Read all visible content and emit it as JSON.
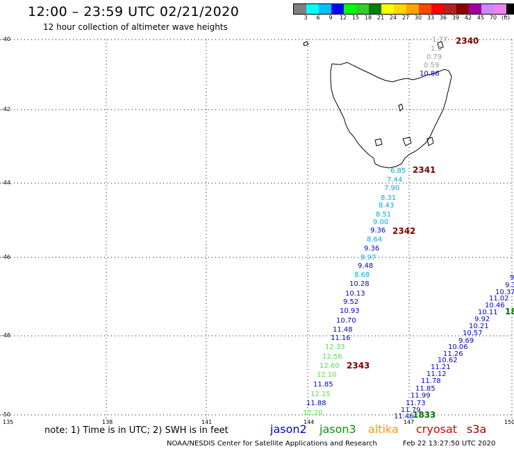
{
  "header": {
    "title": "12:00 – 23:59 UTC 02/21/2020",
    "subtitle": "12 hour collection of altimeter wave heights"
  },
  "colorbar": {
    "colors": [
      "#808080",
      "#00ffff",
      "#00bfff",
      "#0000ff",
      "#00ff00",
      "#32cd32",
      "#008000",
      "#ffff00",
      "#ffd700",
      "#ffa500",
      "#ff4500",
      "#ff0000",
      "#b22222",
      "#8b0000",
      "#a000a0",
      "#cc88ff",
      "#ee82ee",
      "#000000"
    ],
    "labels": [
      "3",
      "6",
      "9",
      "12",
      "15",
      "18",
      "21",
      "24",
      "27",
      "30",
      "33",
      "36",
      "39",
      "42",
      "45",
      "70",
      "(ft)"
    ]
  },
  "axes": {
    "lat_labels": [
      "-40",
      "-42",
      "-44",
      "-46",
      "-48",
      "-50"
    ],
    "lon_labels": [
      "135",
      "138",
      "141",
      "144",
      "147",
      "150"
    ]
  },
  "passes": [
    {
      "label": "2340",
      "color": "#7a0000"
    },
    {
      "label": "2341",
      "color": "#7a0000"
    },
    {
      "label": "2342",
      "color": "#7a0000"
    },
    {
      "label": "2343",
      "color": "#7a0000"
    },
    {
      "label": "1833",
      "color": "#007000"
    },
    {
      "label": "18",
      "color": "#007000"
    }
  ],
  "track_a": [
    {
      "v": "1.77",
      "c": "#999999"
    },
    {
      "v": "1.3",
      "c": "#999999"
    },
    {
      "v": "0.79",
      "c": "#999999"
    },
    {
      "v": "0.59",
      "c": "#999999"
    },
    {
      "v": "10.86",
      "c": "#0000cc"
    },
    {
      "v": "6.85",
      "c": "#00aadd"
    },
    {
      "v": "7.44",
      "c": "#00aadd"
    },
    {
      "v": "7.90",
      "c": "#00aadd"
    },
    {
      "v": "8.31",
      "c": "#00aadd"
    },
    {
      "v": "8.43",
      "c": "#00aadd"
    },
    {
      "v": "8.51",
      "c": "#00aadd"
    },
    {
      "v": "9.00",
      "c": "#00aadd"
    },
    {
      "v": "9.36",
      "c": "#0000cc"
    },
    {
      "v": "8.64",
      "c": "#00aadd"
    },
    {
      "v": "9.36",
      "c": "#0000cc"
    },
    {
      "v": "8.97",
      "c": "#00aadd"
    },
    {
      "v": "9.48",
      "c": "#0000cc"
    },
    {
      "v": "8.68",
      "c": "#00aadd"
    },
    {
      "v": "10.28",
      "c": "#0000cc"
    },
    {
      "v": "10.13",
      "c": "#0000cc"
    },
    {
      "v": "9.52",
      "c": "#0000cc"
    },
    {
      "v": "10.93",
      "c": "#0000cc"
    },
    {
      "v": "10.70",
      "c": "#0000cc"
    },
    {
      "v": "11.48",
      "c": "#0000cc"
    },
    {
      "v": "11.16",
      "c": "#0000cc"
    },
    {
      "v": "12.33",
      "c": "#55dd55"
    },
    {
      "v": "12.56",
      "c": "#55dd55"
    },
    {
      "v": "12.60",
      "c": "#55dd55"
    },
    {
      "v": "12.10",
      "c": "#55dd55"
    },
    {
      "v": "11.85",
      "c": "#0000cc"
    },
    {
      "v": "12.15",
      "c": "#55dd55"
    },
    {
      "v": "11.88",
      "c": "#0000cc"
    },
    {
      "v": "12.20",
      "c": "#55dd55"
    }
  ],
  "track_b": [
    {
      "v": "9",
      "c": "#0000cc"
    },
    {
      "v": "9.3",
      "c": "#0000cc"
    },
    {
      "v": "10.37",
      "c": "#0000cc"
    },
    {
      "v": "11.02",
      "c": "#0000cc"
    },
    {
      "v": "10.46",
      "c": "#0000cc"
    },
    {
      "v": "10.11",
      "c": "#0000cc"
    },
    {
      "v": "9.92",
      "c": "#0000cc"
    },
    {
      "v": "10.21",
      "c": "#0000cc"
    },
    {
      "v": "10.57",
      "c": "#0000cc"
    },
    {
      "v": "9.69",
      "c": "#0000cc"
    },
    {
      "v": "10.06",
      "c": "#0000cc"
    },
    {
      "v": "11.26",
      "c": "#0000cc"
    },
    {
      "v": "10.62",
      "c": "#0000cc"
    },
    {
      "v": "11.21",
      "c": "#0000cc"
    },
    {
      "v": "11.12",
      "c": "#0000cc"
    },
    {
      "v": "11.78",
      "c": "#0000cc"
    },
    {
      "v": "11.85",
      "c": "#0000cc"
    },
    {
      "v": "11.99",
      "c": "#0000cc"
    },
    {
      "v": "11.73",
      "c": "#0000cc"
    },
    {
      "v": "11.79",
      "c": "#0000cc"
    },
    {
      "v": "11.46",
      "c": "#0000cc"
    }
  ],
  "footer": {
    "note": "note: 1) Time is in UTC; 2) SWH is in feet",
    "satellites": [
      {
        "name": "jason2",
        "color": "#0000cc"
      },
      {
        "name": "jason3",
        "color": "#009900"
      },
      {
        "name": "altika",
        "color": "#ff9900"
      },
      {
        "name": "cryosat",
        "color": "#dd0000"
      },
      {
        "name": "s3a",
        "color": "#990000"
      }
    ],
    "credit": "NOAA/NESDIS Center for Satellite Applications and Research",
    "timestamp": "Feb 22 13:27:50 UTC 2020"
  }
}
